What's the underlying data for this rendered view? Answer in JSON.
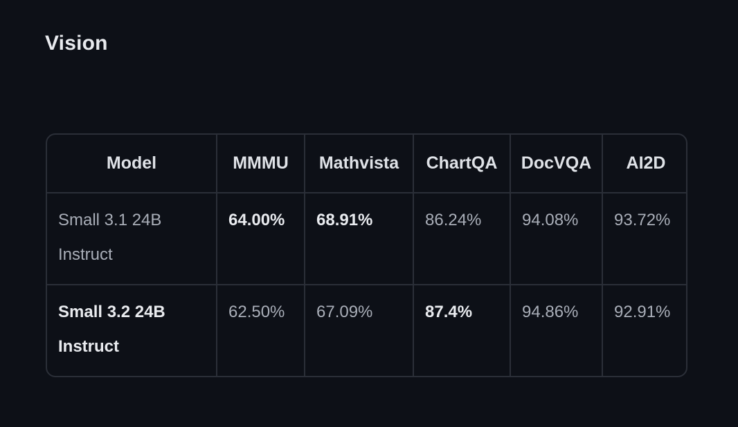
{
  "section": {
    "title": "Vision"
  },
  "table": {
    "headers": [
      "Model",
      "MMMU",
      "Mathvista",
      "ChartQA",
      "DocVQA",
      "AI2D"
    ],
    "rows": [
      {
        "cells": [
          "Small 3.1 24B Instruct",
          "64.00%",
          "68.91%",
          "86.24%",
          "94.08%",
          "93.72%"
        ]
      },
      {
        "cells": [
          "Small 3.2 24B Instruct",
          "62.50%",
          "67.09%",
          "87.4%",
          "94.86%",
          "92.91%"
        ]
      }
    ]
  }
}
